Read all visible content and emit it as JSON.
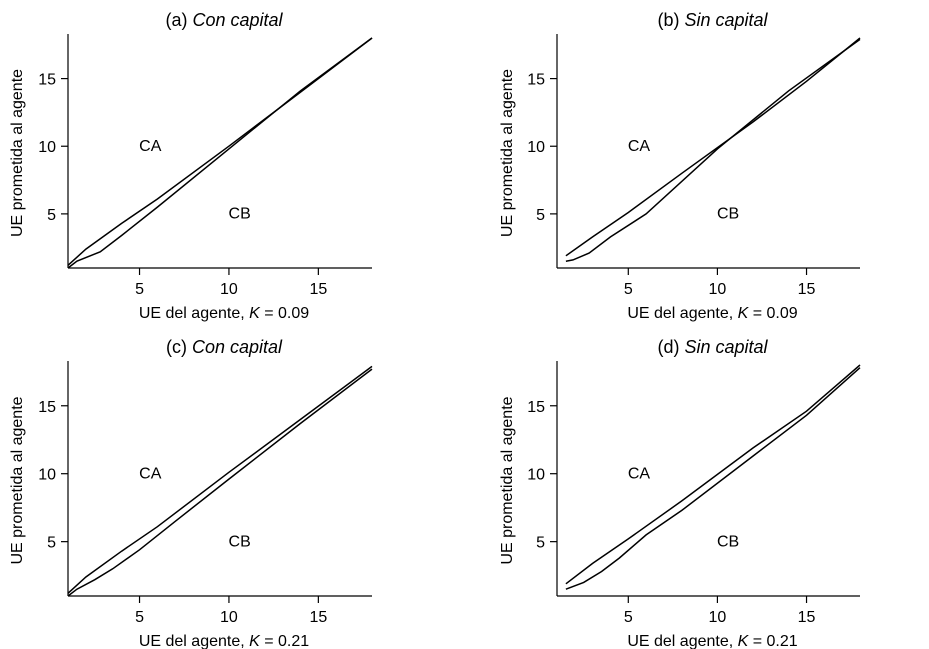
{
  "chart_data": [
    {
      "type": "line",
      "title_prefix": "(a) ",
      "title_italic": "Con capital",
      "xlabel_prefix": "UE del agente, ",
      "xlabel_italic": "K",
      "xlabel_suffix": " = 0.09",
      "ylabel": "UE prometida al agente",
      "xlim": [
        1,
        18
      ],
      "ylim": [
        1,
        18
      ],
      "xticks": [
        5,
        10,
        15
      ],
      "yticks": [
        5,
        10,
        15
      ],
      "region_labels": [
        {
          "text": "CA",
          "x": 5.6,
          "y": 10.1
        },
        {
          "text": "CB",
          "x": 10.6,
          "y": 5.1
        }
      ],
      "series": [
        {
          "x": [
            1,
            2,
            4,
            6,
            10,
            14,
            18
          ],
          "y": [
            1.2,
            2.4,
            4.3,
            6.1,
            10.0,
            14.0,
            18.0
          ]
        },
        {
          "x": [
            1,
            1.5,
            2.8,
            4,
            6,
            10,
            14,
            18
          ],
          "y": [
            1.0,
            1.5,
            2.2,
            3.4,
            5.5,
            9.8,
            14.1,
            18.0
          ]
        }
      ]
    },
    {
      "type": "line",
      "title_prefix": "(b) ",
      "title_italic": "Sin capital",
      "xlabel_prefix": "UE del agente, ",
      "xlabel_italic": "K",
      "xlabel_suffix": " = 0.09",
      "ylabel": "UE prometida al agente",
      "xlim": [
        1,
        18
      ],
      "ylim": [
        1,
        18
      ],
      "xticks": [
        5,
        10,
        15
      ],
      "yticks": [
        5,
        10,
        15
      ],
      "region_labels": [
        {
          "text": "CA",
          "x": 5.6,
          "y": 10.1
        },
        {
          "text": "CB",
          "x": 10.6,
          "y": 5.1
        }
      ],
      "series": [
        {
          "x": [
            1.5,
            3,
            5,
            8,
            12,
            15,
            18
          ],
          "y": [
            1.9,
            3.3,
            5.1,
            8.0,
            11.8,
            14.8,
            18.0
          ]
        },
        {
          "x": [
            1.5,
            1.9,
            2.8,
            4,
            6,
            10,
            14,
            18
          ],
          "y": [
            1.5,
            1.6,
            2.1,
            3.3,
            5.0,
            9.8,
            14.1,
            17.9
          ]
        }
      ]
    },
    {
      "type": "line",
      "title_prefix": "(c) ",
      "title_italic": "Con capital",
      "xlabel_prefix": "UE del agente, ",
      "xlabel_italic": "K",
      "xlabel_suffix": " = 0.21",
      "ylabel": "UE prometida al agente",
      "xlim": [
        1,
        18
      ],
      "ylim": [
        1,
        18
      ],
      "xticks": [
        5,
        10,
        15
      ],
      "yticks": [
        5,
        10,
        15
      ],
      "region_labels": [
        {
          "text": "CA",
          "x": 5.6,
          "y": 10.1
        },
        {
          "text": "CB",
          "x": 10.6,
          "y": 5.1
        }
      ],
      "series": [
        {
          "x": [
            1,
            2,
            4,
            6,
            10,
            14,
            18
          ],
          "y": [
            1.2,
            2.4,
            4.3,
            6.1,
            10.1,
            14.0,
            17.9
          ]
        },
        {
          "x": [
            1,
            1.5,
            2.5,
            3.5,
            5,
            7,
            10,
            14,
            18
          ],
          "y": [
            1.0,
            1.5,
            2.2,
            3.0,
            4.4,
            6.5,
            9.6,
            13.7,
            17.7
          ]
        }
      ]
    },
    {
      "type": "line",
      "title_prefix": "(d) ",
      "title_italic": "Sin capital",
      "xlabel_prefix": "UE del agente, ",
      "xlabel_italic": "K",
      "xlabel_suffix": " = 0.21",
      "ylabel": "UE prometida al agente",
      "xlim": [
        1,
        18
      ],
      "ylim": [
        1,
        18
      ],
      "xticks": [
        5,
        10,
        15
      ],
      "yticks": [
        5,
        10,
        15
      ],
      "region_labels": [
        {
          "text": "CA",
          "x": 5.6,
          "y": 10.1
        },
        {
          "text": "CB",
          "x": 10.6,
          "y": 5.1
        }
      ],
      "series": [
        {
          "x": [
            1.5,
            3,
            5,
            8,
            12,
            15,
            18
          ],
          "y": [
            1.9,
            3.4,
            5.2,
            8.0,
            11.9,
            14.6,
            18.0
          ]
        },
        {
          "x": [
            1.5,
            2.5,
            3.5,
            4.5,
            6,
            8,
            12,
            15,
            18
          ],
          "y": [
            1.5,
            2.0,
            2.8,
            3.8,
            5.5,
            7.3,
            11.3,
            14.3,
            17.8
          ]
        }
      ]
    }
  ]
}
